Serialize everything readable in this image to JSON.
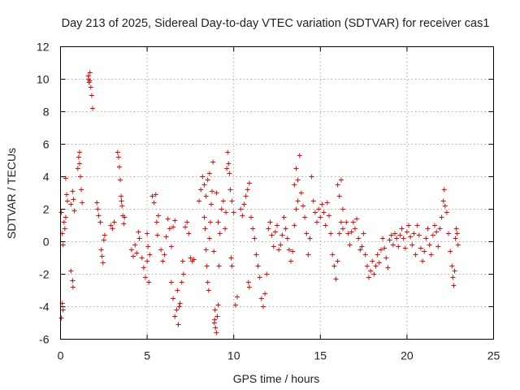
{
  "chart_data": {
    "type": "scatter",
    "title": "Day 213 of 2025, Sidereal Day-to-day VTEC variation (SDTVAR) for receiver cas1",
    "xlabel": "GPS time / hours",
    "ylabel": "SDTVAR / TECUs",
    "xlim": [
      0,
      25
    ],
    "ylim": [
      -6,
      12
    ],
    "x_ticks": [
      0,
      5,
      10,
      15,
      20,
      25
    ],
    "x_tick_labels": [
      "0",
      "5",
      "10",
      "15",
      "20",
      "25"
    ],
    "y_ticks": [
      -6,
      -4,
      -2,
      0,
      2,
      4,
      6,
      8,
      10,
      12
    ],
    "y_tick_labels": [
      "-6",
      "-4",
      "-2",
      "0",
      "2",
      "4",
      "6",
      "8",
      "10",
      "12"
    ],
    "grid": true,
    "marker": "+",
    "color": "#ff0000",
    "series": [
      {
        "name": "SDTVAR",
        "points": [
          [
            0.05,
            1.8
          ],
          [
            0.1,
            0.5
          ],
          [
            0.15,
            -0.2
          ],
          [
            0.2,
            1.2
          ],
          [
            0.25,
            0.8
          ],
          [
            0.3,
            1.5
          ],
          [
            0.1,
            -3.8
          ],
          [
            0.15,
            -4.2
          ],
          [
            0.05,
            -4.7
          ],
          [
            0.35,
            2.9
          ],
          [
            0.3,
            3.9
          ],
          [
            0.4,
            2.5
          ],
          [
            0.6,
            2.3
          ],
          [
            0.7,
            3.1
          ],
          [
            0.8,
            1.9
          ],
          [
            0.75,
            2.6
          ],
          [
            0.6,
            -1.8
          ],
          [
            0.7,
            -2.4
          ],
          [
            0.72,
            -2.8
          ],
          [
            1.0,
            4.5
          ],
          [
            1.05,
            5.2
          ],
          [
            1.1,
            4.8
          ],
          [
            1.15,
            4.0
          ],
          [
            1.2,
            3.2
          ],
          [
            1.25,
            2.4
          ],
          [
            1.1,
            5.5
          ],
          [
            1.6,
            10.2
          ],
          [
            1.65,
            9.8
          ],
          [
            1.7,
            10.4
          ],
          [
            1.75,
            9.5
          ],
          [
            1.8,
            9.0
          ],
          [
            1.85,
            8.2
          ],
          [
            1.62,
            10.0
          ],
          [
            1.68,
            9.9
          ],
          [
            2.1,
            2.4
          ],
          [
            2.15,
            2.0
          ],
          [
            2.2,
            1.6
          ],
          [
            2.3,
            1.2
          ],
          [
            2.35,
            -0.5
          ],
          [
            2.4,
            -0.9
          ],
          [
            2.45,
            -1.3
          ],
          [
            2.5,
            0.1
          ],
          [
            2.55,
            0.4
          ],
          [
            2.9,
            1.0
          ],
          [
            3.0,
            0.8
          ],
          [
            3.1,
            1.2
          ],
          [
            3.3,
            5.5
          ],
          [
            3.35,
            5.2
          ],
          [
            3.4,
            4.6
          ],
          [
            3.45,
            3.8
          ],
          [
            3.5,
            2.8
          ],
          [
            3.55,
            2.2
          ],
          [
            3.6,
            1.6
          ],
          [
            3.65,
            1.1
          ],
          [
            3.7,
            1.5
          ],
          [
            3.52,
            2.5
          ],
          [
            4.1,
            -0.5
          ],
          [
            4.2,
            -0.9
          ],
          [
            4.3,
            -0.2
          ],
          [
            4.4,
            -0.7
          ],
          [
            4.5,
            0.6
          ],
          [
            4.55,
            0.2
          ],
          [
            4.7,
            -1.0
          ],
          [
            4.8,
            -1.6
          ],
          [
            4.9,
            -2.2
          ],
          [
            5.0,
            -1.2
          ],
          [
            5.05,
            -0.3
          ],
          [
            5.1,
            -2.5
          ],
          [
            5.0,
            0.5
          ],
          [
            5.15,
            -0.8
          ],
          [
            5.3,
            2.8
          ],
          [
            5.4,
            2.4
          ],
          [
            5.5,
            2.9
          ],
          [
            5.55,
            1.2
          ],
          [
            5.6,
            0.4
          ],
          [
            5.65,
            1.6
          ],
          [
            5.8,
            -0.5
          ],
          [
            5.9,
            -1.2
          ],
          [
            6.0,
            -0.8
          ],
          [
            6.1,
            0.3
          ],
          [
            6.2,
            1.4
          ],
          [
            6.3,
            0.8
          ],
          [
            6.4,
            -0.3
          ],
          [
            6.5,
            0.9
          ],
          [
            6.6,
            1.3
          ],
          [
            6.4,
            -2.5
          ],
          [
            6.5,
            -3.5
          ],
          [
            6.6,
            -4.6
          ],
          [
            6.7,
            -4.2
          ],
          [
            6.8,
            -5.1
          ],
          [
            6.9,
            -3.8
          ],
          [
            7.0,
            -2.5
          ],
          [
            7.05,
            -1.2
          ],
          [
            7.1,
            -2.0
          ],
          [
            6.75,
            -3.0
          ],
          [
            6.85,
            -4.0
          ],
          [
            7.2,
            0.9
          ],
          [
            7.3,
            1.2
          ],
          [
            7.4,
            0.5
          ],
          [
            7.5,
            -1.0
          ],
          [
            7.6,
            -1.2
          ],
          [
            7.7,
            -1.1
          ],
          [
            8.0,
            2.5
          ],
          [
            8.1,
            3.2
          ],
          [
            8.2,
            4.0
          ],
          [
            8.3,
            3.5
          ],
          [
            8.4,
            2.8
          ],
          [
            8.5,
            3.8
          ],
          [
            8.6,
            4.2
          ],
          [
            8.3,
            1.5
          ],
          [
            8.35,
            0.8
          ],
          [
            8.4,
            -0.5
          ],
          [
            8.45,
            -1.5
          ],
          [
            8.5,
            -2.5
          ],
          [
            8.55,
            -3.0
          ],
          [
            8.6,
            0.2
          ],
          [
            8.65,
            1.2
          ],
          [
            8.7,
            2.3
          ],
          [
            8.8,
            4.9
          ],
          [
            8.75,
            3.1
          ],
          [
            8.85,
            -0.6
          ],
          [
            8.9,
            -4.8
          ],
          [
            8.95,
            -5.3
          ],
          [
            9.0,
            -5.6
          ],
          [
            9.05,
            -4.6
          ],
          [
            9.1,
            -3.9
          ],
          [
            8.88,
            -5.0
          ],
          [
            8.92,
            -4.2
          ],
          [
            9.0,
            3.0
          ],
          [
            9.1,
            1.2
          ],
          [
            9.15,
            -1.5
          ],
          [
            9.2,
            0.5
          ],
          [
            9.3,
            2.0
          ],
          [
            9.4,
            2.5
          ],
          [
            9.5,
            0.8
          ],
          [
            9.55,
            1.8
          ],
          [
            9.6,
            4.5
          ],
          [
            9.65,
            5.5
          ],
          [
            9.7,
            4.8
          ],
          [
            9.75,
            4.2
          ],
          [
            9.8,
            3.2
          ],
          [
            9.9,
            2.5
          ],
          [
            10.0,
            1.8
          ],
          [
            9.85,
            -1.0
          ],
          [
            9.9,
            -1.5
          ],
          [
            10.1,
            -3.9
          ],
          [
            10.2,
            -3.4
          ],
          [
            10.4,
            2.0
          ],
          [
            10.5,
            1.6
          ],
          [
            10.6,
            2.3
          ],
          [
            10.7,
            2.8
          ],
          [
            10.8,
            3.2
          ],
          [
            10.9,
            3.6
          ],
          [
            10.85,
            -2.5
          ],
          [
            10.9,
            -2.8
          ],
          [
            11.0,
            1.5
          ],
          [
            11.1,
            0.8
          ],
          [
            11.2,
            0.2
          ],
          [
            11.3,
            -0.8
          ],
          [
            11.4,
            -1.5
          ],
          [
            11.5,
            -2.2
          ],
          [
            11.6,
            -3.5
          ],
          [
            11.7,
            -4.0
          ],
          [
            11.8,
            -3.2
          ],
          [
            11.9,
            -2.0
          ],
          [
            12.0,
            0.8
          ],
          [
            12.1,
            1.2
          ],
          [
            12.2,
            0.4
          ],
          [
            12.3,
            -0.3
          ],
          [
            12.4,
            0.6
          ],
          [
            12.5,
            1.0
          ],
          [
            12.6,
            -0.5
          ],
          [
            12.7,
            -0.2
          ],
          [
            12.8,
            0.4
          ],
          [
            12.9,
            1.5
          ],
          [
            13.0,
            0.8
          ],
          [
            13.1,
            0.2
          ],
          [
            13.2,
            -0.5
          ],
          [
            13.3,
            -1.2
          ],
          [
            13.4,
            -0.6
          ],
          [
            13.5,
            1.0
          ],
          [
            13.6,
            2.0
          ],
          [
            13.7,
            2.5
          ],
          [
            13.5,
            3.5
          ],
          [
            13.6,
            4.5
          ],
          [
            13.7,
            3.8
          ],
          [
            13.8,
            5.3
          ],
          [
            13.9,
            3.0
          ],
          [
            14.0,
            2.2
          ],
          [
            14.1,
            1.5
          ],
          [
            14.2,
            0.5
          ],
          [
            14.3,
            -0.8
          ],
          [
            14.4,
            0.2
          ],
          [
            14.5,
            4.0
          ],
          [
            14.6,
            2.5
          ],
          [
            14.7,
            1.8
          ],
          [
            14.8,
            1.2
          ],
          [
            14.9,
            2.0
          ],
          [
            15.0,
            1.5
          ],
          [
            15.1,
            2.3
          ],
          [
            15.2,
            1.8
          ],
          [
            15.3,
            1.0
          ],
          [
            15.4,
            2.4
          ],
          [
            15.5,
            1.6
          ],
          [
            15.6,
            0.5
          ],
          [
            15.7,
            -0.8
          ],
          [
            15.8,
            -1.5
          ],
          [
            15.9,
            -2.3
          ],
          [
            16.0,
            -1.2
          ],
          [
            16.1,
            0.5
          ],
          [
            16.2,
            1.2
          ],
          [
            16.3,
            0.8
          ],
          [
            16.0,
            3.5
          ],
          [
            16.1,
            2.8
          ],
          [
            16.2,
            3.8
          ],
          [
            16.3,
            2.0
          ],
          [
            16.5,
            1.2
          ],
          [
            16.6,
            0.5
          ],
          [
            16.7,
            -0.2
          ],
          [
            16.8,
            0.6
          ],
          [
            16.9,
            1.2
          ],
          [
            17.0,
            0.8
          ],
          [
            17.1,
            1.4
          ],
          [
            17.2,
            0.2
          ],
          [
            17.3,
            -0.5
          ],
          [
            17.4,
            -0.3
          ],
          [
            17.5,
            0.5
          ],
          [
            17.6,
            -0.8
          ],
          [
            17.7,
            -1.5
          ],
          [
            17.8,
            -2.2
          ],
          [
            17.9,
            -1.8
          ],
          [
            18.0,
            -1.2
          ],
          [
            18.1,
            -2.0
          ],
          [
            18.2,
            -1.5
          ],
          [
            18.3,
            -0.8
          ],
          [
            18.4,
            -1.3
          ],
          [
            18.5,
            -0.5
          ],
          [
            18.6,
            0.2
          ],
          [
            18.7,
            -0.4
          ],
          [
            18.8,
            -1.0
          ],
          [
            18.9,
            -1.6
          ],
          [
            19.0,
            0.1
          ],
          [
            19.1,
            0.4
          ],
          [
            19.2,
            -0.2
          ],
          [
            19.3,
            0.5
          ],
          [
            19.4,
            0.2
          ],
          [
            19.5,
            -0.3
          ],
          [
            19.6,
            0.4
          ],
          [
            19.7,
            0.8
          ],
          [
            19.8,
            0.2
          ],
          [
            19.9,
            -0.4
          ],
          [
            20.0,
            0.6
          ],
          [
            20.1,
            1.0
          ],
          [
            20.2,
            0.3
          ],
          [
            20.3,
            -0.2
          ],
          [
            20.4,
            0.5
          ],
          [
            20.5,
            -0.8
          ],
          [
            20.6,
            1.0
          ],
          [
            20.7,
            0.4
          ],
          [
            20.8,
            -0.4
          ],
          [
            20.9,
            -1.2
          ],
          [
            21.0,
            -0.6
          ],
          [
            21.1,
            0.2
          ],
          [
            21.2,
            0.8
          ],
          [
            21.3,
            -0.2
          ],
          [
            21.4,
            -0.8
          ],
          [
            21.5,
            0.4
          ],
          [
            21.6,
            1.0
          ],
          [
            21.7,
            0.6
          ],
          [
            21.8,
            -0.3
          ],
          [
            21.9,
            0.8
          ],
          [
            22.0,
            1.5
          ],
          [
            22.1,
            2.5
          ],
          [
            22.15,
            3.2
          ],
          [
            22.2,
            2.2
          ],
          [
            22.3,
            1.8
          ],
          [
            22.4,
            0.5
          ],
          [
            22.5,
            -0.6
          ],
          [
            22.6,
            -1.5
          ],
          [
            22.65,
            -2.2
          ],
          [
            22.7,
            -2.7
          ],
          [
            22.75,
            -1.8
          ],
          [
            22.8,
            0.2
          ],
          [
            22.85,
            0.8
          ],
          [
            22.9,
            0.5
          ],
          [
            22.95,
            -0.2
          ]
        ]
      }
    ]
  }
}
